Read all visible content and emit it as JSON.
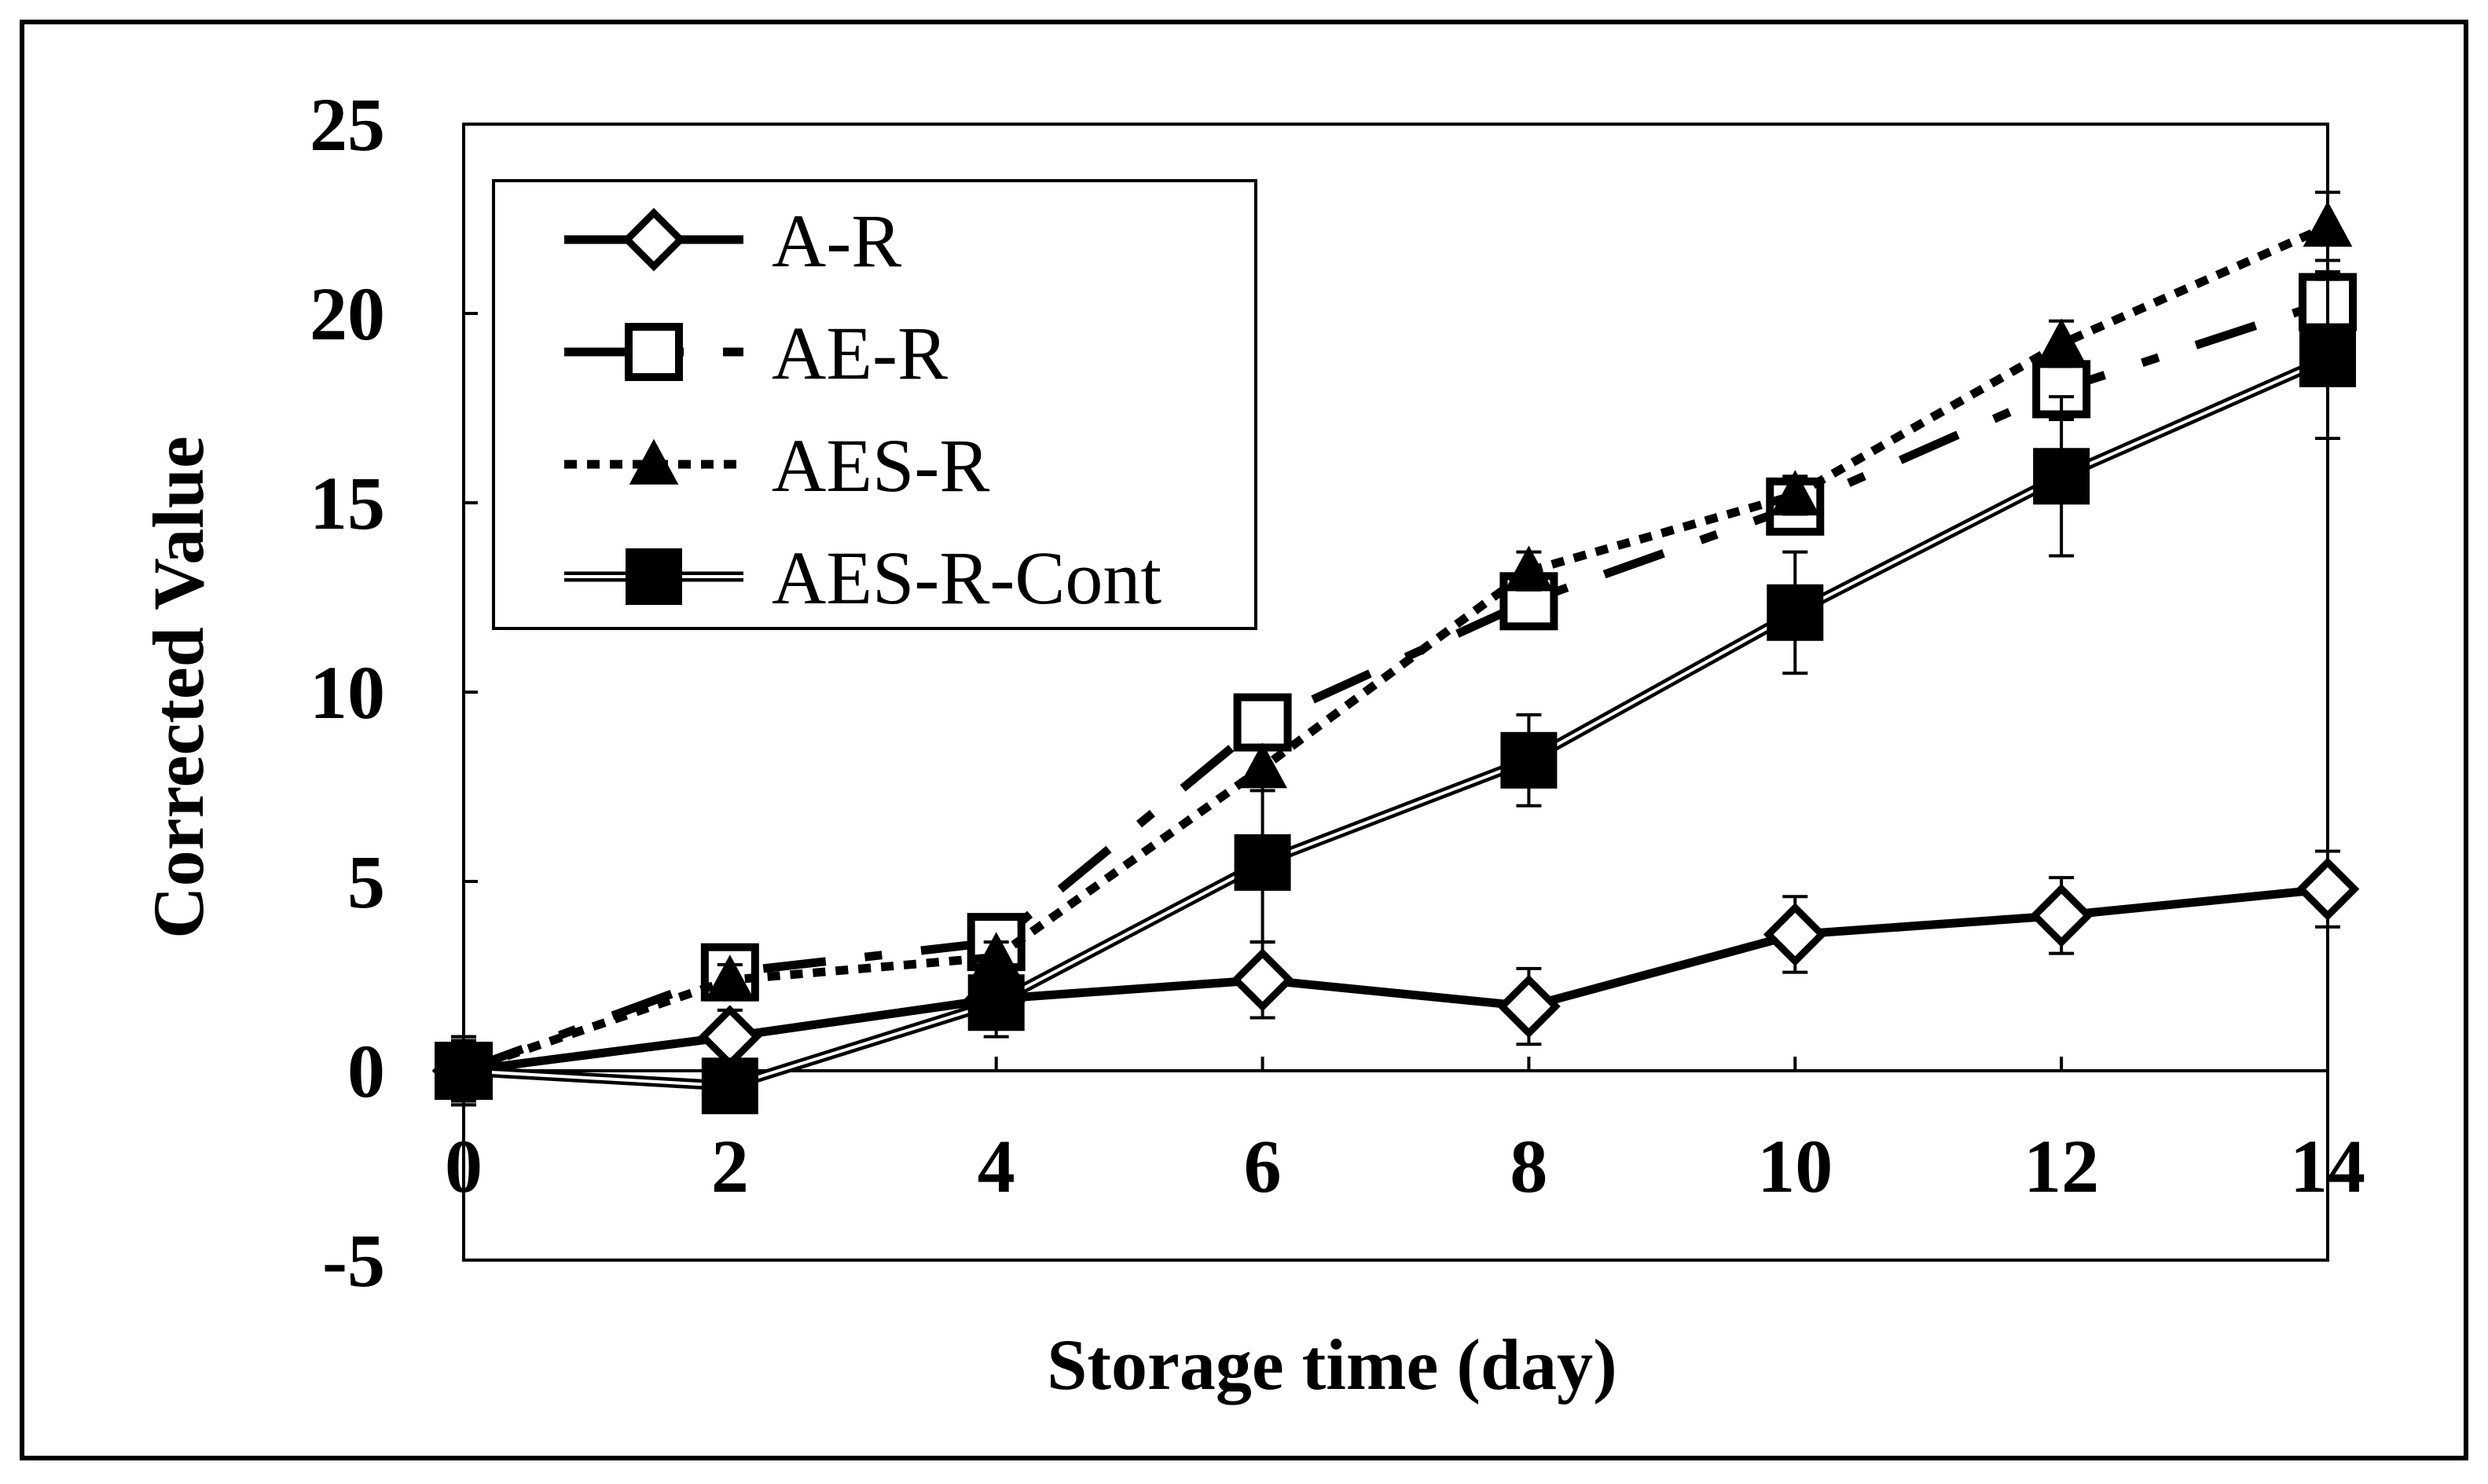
{
  "chart_data": {
    "type": "line",
    "title": "",
    "xlabel": "Storage time (day)",
    "ylabel": "Corrected Value",
    "xlim": [
      0,
      14
    ],
    "ylim": [
      -5,
      25
    ],
    "x_ticks": [
      0,
      2,
      4,
      6,
      8,
      10,
      12,
      14
    ],
    "y_ticks": [
      -5,
      0,
      5,
      10,
      15,
      20,
      25
    ],
    "grid": false,
    "legend_position": "top-left",
    "x": [
      0,
      2,
      4,
      6,
      8,
      10,
      12,
      14
    ],
    "series": [
      {
        "name": "A-R",
        "marker": "open-diamond",
        "line_style": "solid-thick",
        "values": [
          0,
          0.9,
          1.9,
          2.4,
          1.7,
          3.6,
          4.1,
          4.8
        ],
        "errors": [
          0.9,
          0.7,
          0.7,
          1.0,
          1.0,
          1.0,
          1.0,
          1.0
        ]
      },
      {
        "name": "AE-R",
        "marker": "open-square",
        "line_style": "long-dash-dot",
        "values": [
          0,
          2.6,
          3.4,
          9.2,
          12.4,
          14.9,
          18.0,
          20.3
        ],
        "errors": [
          0.9,
          0.4,
          0.4,
          0.6,
          0.6,
          0.6,
          0.8,
          0.8
        ]
      },
      {
        "name": "AES-R",
        "marker": "filled-triangle",
        "line_style": "dotted",
        "values": [
          0,
          2.4,
          3.0,
          8.0,
          13.2,
          15.2,
          19.2,
          22.3
        ],
        "errors": [
          0.8,
          0.4,
          0.4,
          0.6,
          0.5,
          0.5,
          0.6,
          0.9
        ]
      },
      {
        "name": "AES-R-Cont",
        "marker": "filled-square",
        "line_style": "double-thin",
        "values": [
          0,
          -0.4,
          1.8,
          5.5,
          8.2,
          12.1,
          15.7,
          18.8
        ],
        "errors": [
          0.6,
          0.4,
          0.9,
          2.1,
          1.2,
          1.6,
          2.1,
          2.1
        ]
      }
    ]
  }
}
